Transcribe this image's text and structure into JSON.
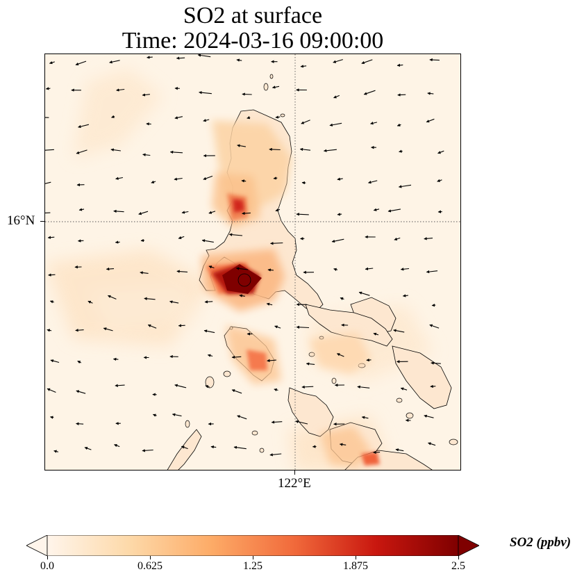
{
  "title": {
    "line1": "SO2 at surface",
    "line2": "Time: 2024-03-16 09:00:00"
  },
  "axes": {
    "lat_label": "16°N",
    "lon_label": "122°E"
  },
  "colorbar": {
    "label": "SO2 (ppbv)",
    "ticks": [
      "0.0",
      "0.625",
      "1.25",
      "1.875",
      "2.5"
    ],
    "colors": [
      "#fff5eb",
      "#fdd9a9",
      "#fdab67",
      "#f16a3b",
      "#c9170f",
      "#7f0000"
    ]
  },
  "colors": {
    "ocean": "#fef4e6",
    "land": "#fde6cc",
    "coast": "#000000",
    "gridline": "#555555"
  }
}
